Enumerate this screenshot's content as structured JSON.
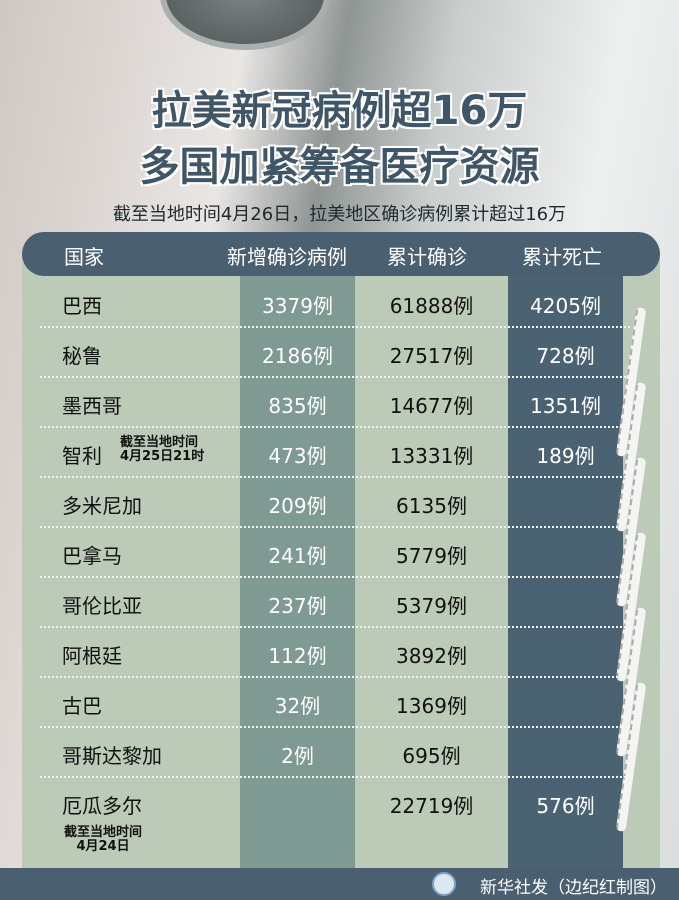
{
  "title_line1": "拉美新冠病例超16万",
  "title_line2": "多国加紧筹备医疗资源",
  "subtitle": "截至当地时间4月26日，拉美地区确诊病例累计超过16万",
  "headers": [
    "国家",
    "新增确诊病例",
    "累计确诊",
    "累计死亡"
  ],
  "rows": [
    {
      "country": "巴西",
      "new": "3379例",
      "total": "61888例",
      "deaths": "4205例",
      "note": ""
    },
    {
      "country": "秘鲁",
      "new": "2186例",
      "total": "27517例",
      "deaths": "728例",
      "note": ""
    },
    {
      "country": "墨西哥",
      "new": "835例",
      "total": "14677例",
      "deaths": "1351例",
      "note": ""
    },
    {
      "country": "智利",
      "new": "473例",
      "total": "13331例",
      "deaths": "189例",
      "note": "截至当地时间\n4月25日21时"
    },
    {
      "country": "多米尼加",
      "new": "209例",
      "total": "6135例",
      "deaths": "",
      "note": ""
    },
    {
      "country": "巴拿马",
      "new": "241例",
      "total": "5779例",
      "deaths": "",
      "note": ""
    },
    {
      "country": "哥伦比亚",
      "new": "237例",
      "total": "5379例",
      "deaths": "",
      "note": ""
    },
    {
      "country": "阿根廷",
      "new": "112例",
      "total": "3892例",
      "deaths": "",
      "note": ""
    },
    {
      "country": "古巴",
      "new": "32例",
      "total": "1369例",
      "deaths": "",
      "note": ""
    },
    {
      "country": "哥斯达黎加",
      "new": "2例",
      "total": "695例",
      "deaths": "",
      "note": ""
    },
    {
      "country": "厄瓜多尔",
      "new": "",
      "total": "22719例",
      "deaths": "576例",
      "note": "截至当地时间\n4月24日"
    }
  ],
  "footer": "新华社发（边纪红制图）",
  "colors": {
    "header": "#4a6070",
    "body": "#bccbb8",
    "new_col": "#7f9a93",
    "deaths_col": "#4b6272",
    "title": "#3e5667"
  }
}
